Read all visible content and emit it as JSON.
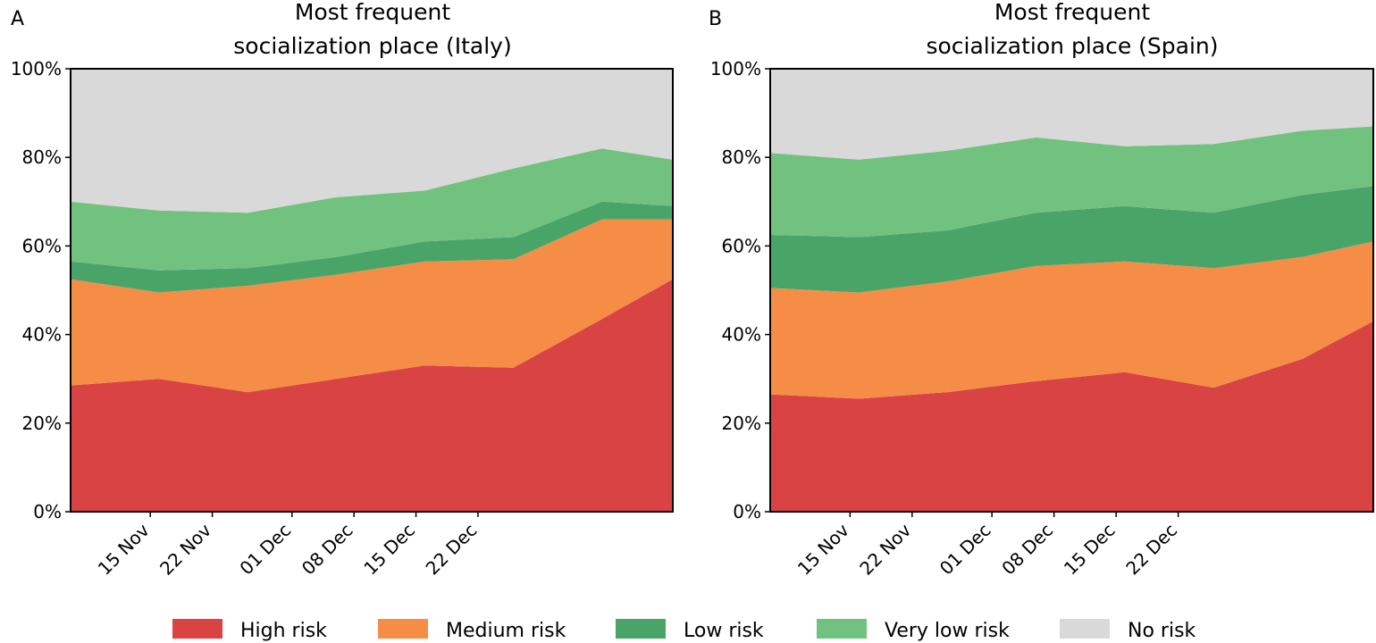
{
  "colors": {
    "high": "#d94343",
    "medium": "#f58d47",
    "low": "#48a567",
    "very_low": "#71c27f",
    "none": "#d9d9d9"
  },
  "legend": [
    {
      "key": "high",
      "label": "High risk"
    },
    {
      "key": "medium",
      "label": "Medium risk"
    },
    {
      "key": "low",
      "label": "Low risk"
    },
    {
      "key": "very_low",
      "label": "Very low risk"
    },
    {
      "key": "none",
      "label": "No risk"
    }
  ],
  "chart_data": [
    {
      "type": "area",
      "panel_label": "A",
      "title_line1": "Most frequent",
      "title_line2": "socialization place (Italy)",
      "stacked": true,
      "x": [
        "2020-11-06",
        "2020-11-16",
        "2020-11-26",
        "2020-12-06",
        "2020-12-16",
        "2020-12-26",
        "2021-01-05",
        "2021-01-13"
      ],
      "x_tick_values": [
        "2020-11-15",
        "2020-11-22",
        "2020-12-01",
        "2020-12-08",
        "2020-12-15",
        "2020-12-22"
      ],
      "x_tick_labels": [
        "15 Nov",
        "22 Nov",
        "01 Dec",
        "08 Dec",
        "15 Dec",
        "22 Dec"
      ],
      "y_ticks": [
        "0%",
        "20%",
        "40%",
        "60%",
        "80%",
        "100%"
      ],
      "ylim": [
        0,
        100
      ],
      "series": [
        {
          "name": "High risk",
          "key": "high",
          "values": [
            28.5,
            30.0,
            27.0,
            30.0,
            33.0,
            32.5,
            43.5,
            52.5
          ]
        },
        {
          "name": "Medium risk",
          "key": "medium",
          "values": [
            24.0,
            19.5,
            24.0,
            23.5,
            23.5,
            24.5,
            22.5,
            13.5
          ]
        },
        {
          "name": "Low risk",
          "key": "low",
          "values": [
            4.0,
            5.0,
            4.0,
            4.0,
            4.5,
            5.0,
            4.0,
            3.0
          ]
        },
        {
          "name": "Very low risk",
          "key": "very_low",
          "values": [
            13.5,
            13.5,
            12.5,
            13.5,
            11.5,
            15.5,
            12.0,
            10.5
          ]
        },
        {
          "name": "No risk",
          "key": "none",
          "values": [
            30.0,
            32.0,
            32.5,
            29.0,
            27.5,
            22.5,
            18.0,
            20.5
          ]
        }
      ]
    },
    {
      "type": "area",
      "panel_label": "B",
      "title_line1": "Most frequent",
      "title_line2": "socialization place (Spain)",
      "stacked": true,
      "x": [
        "2020-11-06",
        "2020-11-16",
        "2020-11-26",
        "2020-12-06",
        "2020-12-16",
        "2020-12-26",
        "2021-01-05",
        "2021-01-13"
      ],
      "x_tick_values": [
        "2020-11-15",
        "2020-11-22",
        "2020-12-01",
        "2020-12-08",
        "2020-12-15",
        "2020-12-22"
      ],
      "x_tick_labels": [
        "15 Nov",
        "22 Nov",
        "01 Dec",
        "08 Dec",
        "15 Dec",
        "22 Dec"
      ],
      "y_ticks": [
        "0%",
        "20%",
        "40%",
        "60%",
        "80%",
        "100%"
      ],
      "ylim": [
        0,
        100
      ],
      "series": [
        {
          "name": "High risk",
          "key": "high",
          "values": [
            26.5,
            25.5,
            27.0,
            29.5,
            31.5,
            28.0,
            34.5,
            43.0
          ]
        },
        {
          "name": "Medium risk",
          "key": "medium",
          "values": [
            24.0,
            24.0,
            25.0,
            26.0,
            25.0,
            27.0,
            23.0,
            18.0
          ]
        },
        {
          "name": "Low risk",
          "key": "low",
          "values": [
            12.0,
            12.5,
            11.5,
            12.0,
            12.5,
            12.5,
            14.0,
            12.5
          ]
        },
        {
          "name": "Very low risk",
          "key": "very_low",
          "values": [
            18.5,
            17.5,
            18.0,
            17.0,
            13.5,
            15.5,
            14.5,
            13.5
          ]
        },
        {
          "name": "No risk",
          "key": "none",
          "values": [
            19.0,
            20.5,
            18.5,
            15.5,
            17.5,
            17.0,
            14.0,
            13.0
          ]
        }
      ]
    }
  ]
}
